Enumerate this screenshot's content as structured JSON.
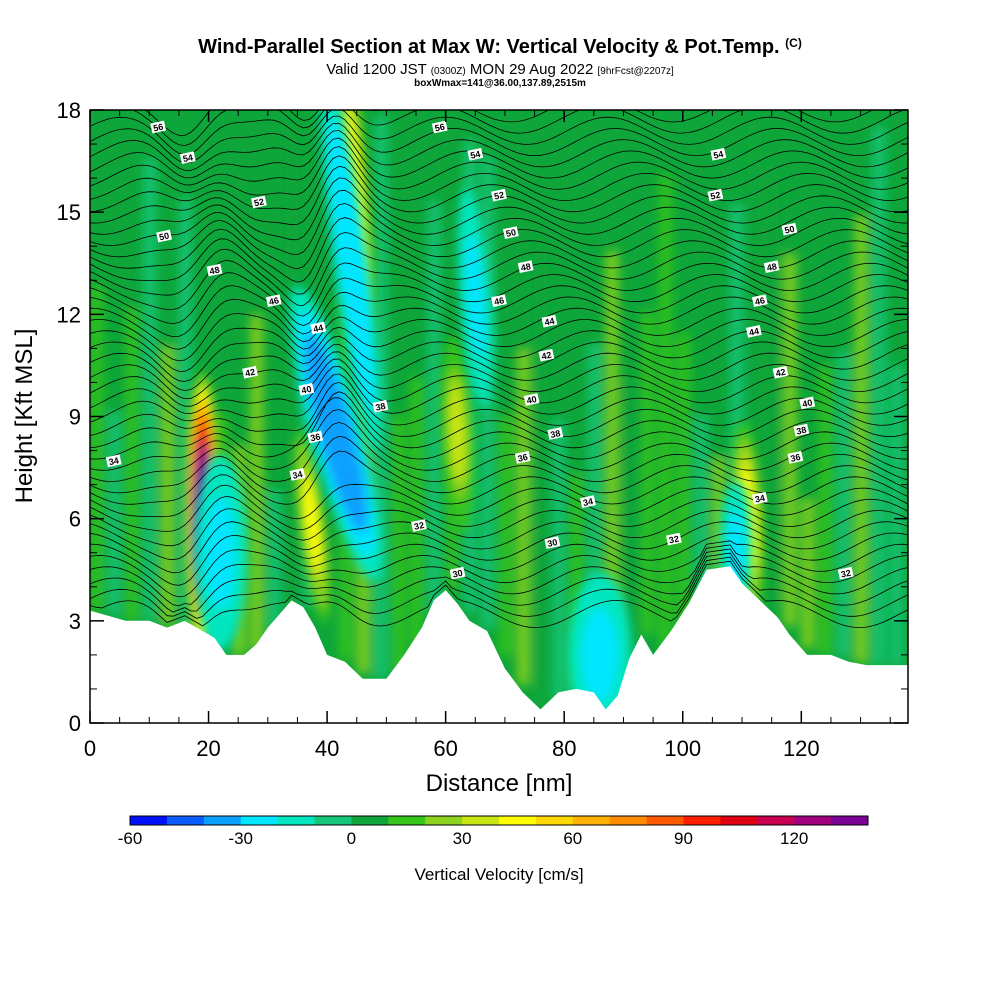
{
  "chart_data": {
    "type": "heatmap",
    "title": "Wind-Parallel Section at Max W: Vertical Velocity & Pot.Temp.",
    "title_mark": "(C)",
    "subtitle_parts": [
      "Valid 1200 JST",
      "(0300Z)",
      "MON 29 Aug 2022",
      "[9hrFcst@2207z]"
    ],
    "subtitle2": "boxWmax=141@36.00,137.89,2515m",
    "xlabel": "Distance [nm]",
    "ylabel": "Height [Kft MSL]",
    "xlim": [
      0,
      138
    ],
    "ylim": [
      0,
      18
    ],
    "x_ticks": [
      "0",
      "20",
      "40",
      "60",
      "80",
      "100",
      "120"
    ],
    "y_ticks": [
      "0",
      "3",
      "6",
      "9",
      "12",
      "15",
      "18"
    ],
    "colorbar": {
      "label": "Vertical Velocity [cm/s]",
      "tick_labels": [
        "-60",
        "-30",
        "0",
        "30",
        "60",
        "90",
        "120"
      ],
      "range": [
        -60,
        140
      ],
      "colors": [
        "#0010ff",
        "#0a5cff",
        "#0aa0ff",
        "#00e6ff",
        "#00e6c0",
        "#12c67a",
        "#0ea63a",
        "#36c51b",
        "#8cd21f",
        "#c8e614",
        "#ffff00",
        "#ffd700",
        "#ffb300",
        "#ff8c00",
        "#ff5a00",
        "#ff1e00",
        "#e00014",
        "#c80050",
        "#a00080",
        "#7a0096"
      ]
    },
    "terrain_kft": [
      [
        0,
        3.3
      ],
      [
        6,
        3.0
      ],
      [
        10,
        3.0
      ],
      [
        13,
        2.8
      ],
      [
        16,
        3.0
      ],
      [
        18,
        2.8
      ],
      [
        21,
        2.5
      ],
      [
        23,
        2.0
      ],
      [
        26,
        2.0
      ],
      [
        28,
        2.3
      ],
      [
        30,
        2.8
      ],
      [
        32,
        3.2
      ],
      [
        34,
        3.6
      ],
      [
        36,
        3.4
      ],
      [
        38,
        2.8
      ],
      [
        40,
        2.0
      ],
      [
        43,
        1.8
      ],
      [
        46,
        1.3
      ],
      [
        50,
        1.3
      ],
      [
        53,
        2.0
      ],
      [
        56,
        2.8
      ],
      [
        58,
        3.6
      ],
      [
        60,
        3.9
      ],
      [
        62,
        3.5
      ],
      [
        64,
        3.0
      ],
      [
        67,
        2.7
      ],
      [
        70,
        1.6
      ],
      [
        73,
        0.9
      ],
      [
        76,
        0.4
      ],
      [
        79,
        0.9
      ],
      [
        82,
        1.0
      ],
      [
        85,
        0.9
      ],
      [
        87,
        0.4
      ],
      [
        89,
        0.8
      ],
      [
        91,
        1.9
      ],
      [
        93,
        2.6
      ],
      [
        95,
        2.0
      ],
      [
        98,
        2.7
      ],
      [
        101,
        3.5
      ],
      [
        104,
        4.5
      ],
      [
        108,
        4.6
      ],
      [
        110,
        4.1
      ],
      [
        113,
        3.6
      ],
      [
        116,
        3.1
      ],
      [
        118,
        2.6
      ],
      [
        121,
        2.0
      ],
      [
        125,
        2.0
      ],
      [
        128,
        1.8
      ],
      [
        131,
        1.7
      ],
      [
        133,
        1.7
      ],
      [
        138,
        1.7
      ]
    ],
    "theta_label_values": [
      "30",
      "32",
      "34",
      "36",
      "38",
      "40",
      "42",
      "44",
      "46",
      "48",
      "50",
      "52",
      "54",
      "56"
    ],
    "theta_labels": [
      {
        "text": "56",
        "x": 11.5,
        "y": 17.5
      },
      {
        "text": "54",
        "x": 16.5,
        "y": 16.6
      },
      {
        "text": "52",
        "x": 28.5,
        "y": 15.3
      },
      {
        "text": "50",
        "x": 12.5,
        "y": 14.3
      },
      {
        "text": "48",
        "x": 21.0,
        "y": 13.3
      },
      {
        "text": "46",
        "x": 31.0,
        "y": 12.4
      },
      {
        "text": "44",
        "x": 38.5,
        "y": 11.6
      },
      {
        "text": "42",
        "x": 27.0,
        "y": 10.3
      },
      {
        "text": "40",
        "x": 36.5,
        "y": 9.8
      },
      {
        "text": "38",
        "x": 49.0,
        "y": 9.3
      },
      {
        "text": "36",
        "x": 38.0,
        "y": 8.4
      },
      {
        "text": "34",
        "x": 35.0,
        "y": 7.3
      },
      {
        "text": "34",
        "x": 4.0,
        "y": 7.7
      },
      {
        "text": "32",
        "x": 55.5,
        "y": 5.8
      },
      {
        "text": "30",
        "x": 62.0,
        "y": 4.4
      },
      {
        "text": "56",
        "x": 59.0,
        "y": 17.5
      },
      {
        "text": "54",
        "x": 65.0,
        "y": 16.7
      },
      {
        "text": "52",
        "x": 69.0,
        "y": 15.5
      },
      {
        "text": "50",
        "x": 71.0,
        "y": 14.4
      },
      {
        "text": "48",
        "x": 73.5,
        "y": 13.4
      },
      {
        "text": "46",
        "x": 69.0,
        "y": 12.4
      },
      {
        "text": "44",
        "x": 77.5,
        "y": 11.8
      },
      {
        "text": "42",
        "x": 77.0,
        "y": 10.8
      },
      {
        "text": "40",
        "x": 74.5,
        "y": 9.5
      },
      {
        "text": "38",
        "x": 78.5,
        "y": 8.5
      },
      {
        "text": "36",
        "x": 73.0,
        "y": 7.8
      },
      {
        "text": "34",
        "x": 84.0,
        "y": 6.5
      },
      {
        "text": "32",
        "x": 98.5,
        "y": 5.4
      },
      {
        "text": "30",
        "x": 78.0,
        "y": 5.3
      },
      {
        "text": "54",
        "x": 106.0,
        "y": 16.7
      },
      {
        "text": "52",
        "x": 105.5,
        "y": 15.5
      },
      {
        "text": "50",
        "x": 118.0,
        "y": 14.5
      },
      {
        "text": "48",
        "x": 115.0,
        "y": 13.4
      },
      {
        "text": "46",
        "x": 113.0,
        "y": 12.4
      },
      {
        "text": "44",
        "x": 112.0,
        "y": 11.5
      },
      {
        "text": "42",
        "x": 116.5,
        "y": 10.3
      },
      {
        "text": "40",
        "x": 121.0,
        "y": 9.4
      },
      {
        "text": "38",
        "x": 120.0,
        "y": 8.6
      },
      {
        "text": "36",
        "x": 119.0,
        "y": 7.8
      },
      {
        "text": "34",
        "x": 113.0,
        "y": 6.6
      },
      {
        "text": "32",
        "x": 127.5,
        "y": 4.4
      }
    ],
    "w_features": [
      {
        "x": 19,
        "y": 6.2,
        "w": 140,
        "rx": 1.6,
        "ry": 2.6,
        "lean": 0.0
      },
      {
        "x": 37.5,
        "y": 5.8,
        "w": 45,
        "rx": 1.2,
        "ry": 1.8,
        "lean": 0.5
      },
      {
        "x": 44.5,
        "y": 15.5,
        "w": 40,
        "rx": 1.4,
        "ry": 3.0,
        "lean": 0.3
      },
      {
        "x": 62,
        "y": 8.5,
        "w": 32,
        "rx": 1.4,
        "ry": 1.8,
        "lean": 0.2
      },
      {
        "x": 111,
        "y": 6.0,
        "w": 40,
        "rx": 1.4,
        "ry": 1.8,
        "lean": 0.2
      },
      {
        "x": 41.5,
        "y": 8.5,
        "w": -40,
        "rx": 2.4,
        "ry": 2.8,
        "lean": 1.0
      },
      {
        "x": 44,
        "y": 13.5,
        "w": -30,
        "rx": 1.6,
        "ry": 3.5,
        "lean": 0.5
      },
      {
        "x": 65,
        "y": 12.5,
        "w": -25,
        "rx": 1.4,
        "ry": 2.0,
        "lean": 0.3
      },
      {
        "x": 22,
        "y": 5.0,
        "w": -22,
        "rx": 2.5,
        "ry": 1.8,
        "lean": 0.0
      },
      {
        "x": 86,
        "y": 2.0,
        "w": -25,
        "rx": 3.0,
        "ry": 1.5,
        "lean": 0.0
      },
      {
        "x": 109,
        "y": 5.2,
        "w": -22,
        "rx": 1.5,
        "ry": 1.2,
        "lean": 0.0
      }
    ]
  }
}
